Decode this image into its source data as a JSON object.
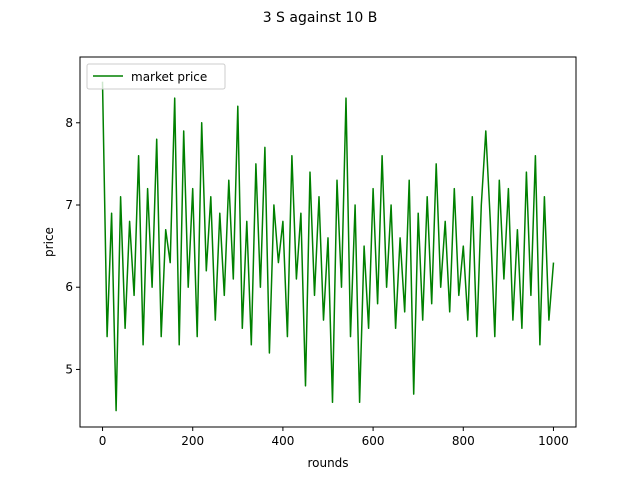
{
  "chart_data": {
    "type": "line",
    "title": "3 S against 10 B",
    "xlabel": "rounds",
    "ylabel": "price",
    "xlim": [
      -50,
      1050
    ],
    "ylim": [
      4.3,
      8.8
    ],
    "xticks": [
      0,
      200,
      400,
      600,
      800,
      1000
    ],
    "yticks": [
      5,
      6,
      7,
      8
    ],
    "grid": false,
    "legend_position": "top-left",
    "series": [
      {
        "name": "market price",
        "color": "#008000",
        "x": [
          0,
          10,
          20,
          30,
          40,
          50,
          60,
          70,
          80,
          90,
          100,
          110,
          120,
          130,
          140,
          150,
          160,
          170,
          180,
          190,
          200,
          210,
          220,
          230,
          240,
          250,
          260,
          270,
          280,
          290,
          300,
          310,
          320,
          330,
          340,
          350,
          360,
          370,
          380,
          390,
          400,
          410,
          420,
          430,
          440,
          450,
          460,
          470,
          480,
          490,
          500,
          510,
          520,
          530,
          540,
          550,
          560,
          570,
          580,
          590,
          600,
          610,
          620,
          630,
          640,
          650,
          660,
          670,
          680,
          690,
          700,
          710,
          720,
          730,
          740,
          750,
          760,
          770,
          780,
          790,
          800,
          810,
          820,
          830,
          840,
          850,
          860,
          870,
          880,
          890,
          900,
          910,
          920,
          930,
          940,
          950,
          960,
          970,
          980,
          990,
          1000
        ],
        "y": [
          8.5,
          5.4,
          6.9,
          4.5,
          7.1,
          5.5,
          6.8,
          5.9,
          7.6,
          5.3,
          7.2,
          6.0,
          7.8,
          5.4,
          6.7,
          6.3,
          8.3,
          5.3,
          7.9,
          6.0,
          7.2,
          5.4,
          8.0,
          6.2,
          7.1,
          5.6,
          6.9,
          5.9,
          7.3,
          6.1,
          8.2,
          5.5,
          6.8,
          5.3,
          7.5,
          6.0,
          7.7,
          5.2,
          7.0,
          6.3,
          6.8,
          5.4,
          7.6,
          6.1,
          6.9,
          4.8,
          7.4,
          5.9,
          7.1,
          5.6,
          6.6,
          4.6,
          7.3,
          6.0,
          8.3,
          5.4,
          7.0,
          4.6,
          6.5,
          5.5,
          7.2,
          5.8,
          7.6,
          6.0,
          7.0,
          5.5,
          6.6,
          5.7,
          7.3,
          4.7,
          6.9,
          5.6,
          7.1,
          5.8,
          7.5,
          6.0,
          6.8,
          5.7,
          7.2,
          5.9,
          6.5,
          5.6,
          7.1,
          5.4,
          7.0,
          7.9,
          6.8,
          5.4,
          7.3,
          6.1,
          7.2,
          5.6,
          6.7,
          5.5,
          7.4,
          5.9,
          7.6,
          5.3,
          7.1,
          5.6,
          6.3
        ]
      }
    ]
  }
}
